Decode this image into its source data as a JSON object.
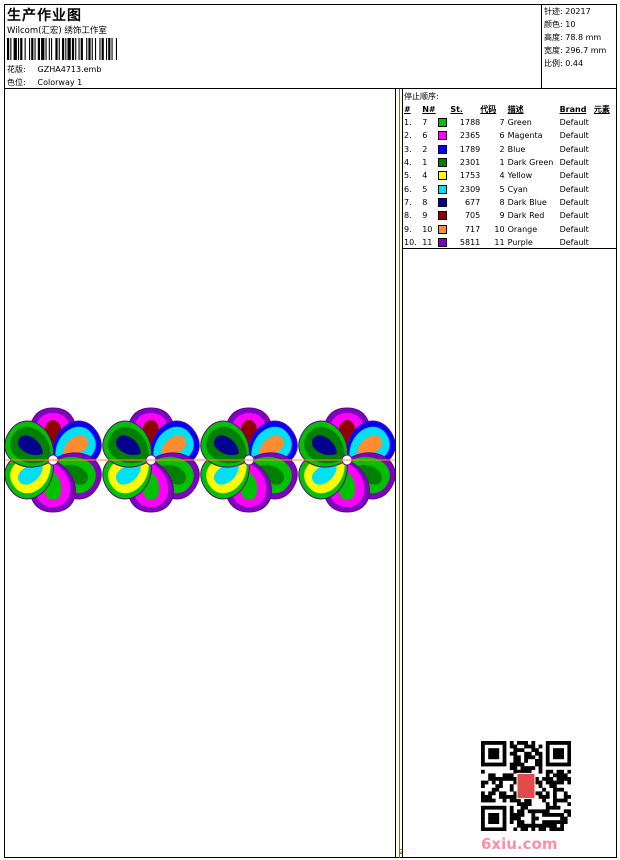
{
  "header": {
    "title": "生产作业图",
    "company": "Wilcom(汇宏) 绣饰工作室",
    "design": {
      "label": "花版:",
      "value": "GZHA4713.emb"
    },
    "colorway": {
      "label": "色位:",
      "value": "Colorway 1"
    }
  },
  "stats": [
    {
      "label": "针迹:",
      "value": "20217"
    },
    {
      "label": "颜色:",
      "value": "10"
    },
    {
      "label": "高度:",
      "value": "78.8 mm"
    },
    {
      "label": "宽度:",
      "value": "296.7 mm"
    },
    {
      "label": "比例:",
      "value": "0.44"
    }
  ],
  "stops": {
    "title": "停止顺序:",
    "headers": [
      "#",
      "N#",
      "St.",
      "代码",
      "描述",
      "Brand",
      "元素"
    ],
    "rows": [
      {
        "idx": "1.",
        "n": "7",
        "color": "#00c000",
        "st": "1788",
        "code": "7",
        "desc": "Green",
        "brand": "Default"
      },
      {
        "idx": "2.",
        "n": "6",
        "color": "#ff00ff",
        "st": "2365",
        "code": "6",
        "desc": "Magenta",
        "brand": "Default"
      },
      {
        "idx": "3.",
        "n": "2",
        "color": "#0000ff",
        "st": "1789",
        "code": "2",
        "desc": "Blue",
        "brand": "Default"
      },
      {
        "idx": "4.",
        "n": "1",
        "color": "#008000",
        "st": "2301",
        "code": "1",
        "desc": "Dark Green",
        "brand": "Default"
      },
      {
        "idx": "5.",
        "n": "4",
        "color": "#ffff00",
        "st": "1753",
        "code": "4",
        "desc": "Yellow",
        "brand": "Default"
      },
      {
        "idx": "6.",
        "n": "5",
        "color": "#00e0f0",
        "st": "2309",
        "code": "5",
        "desc": "Cyan",
        "brand": "Default"
      },
      {
        "idx": "7.",
        "n": "8",
        "color": "#000090",
        "st": "677",
        "code": "8",
        "desc": "Dark Blue",
        "brand": "Default"
      },
      {
        "idx": "8.",
        "n": "9",
        "color": "#900000",
        "st": "705",
        "code": "9",
        "desc": "Dark Red",
        "brand": "Default"
      },
      {
        "idx": "9.",
        "n": "10",
        "color": "#ff8c30",
        "st": "717",
        "code": "10",
        "desc": "Orange",
        "brand": "Default"
      },
      {
        "idx": "10.",
        "n": "11",
        "color": "#8000c0",
        "st": "5811",
        "code": "11",
        "desc": "Purple",
        "brand": "Default"
      }
    ]
  },
  "preview": {
    "flower_count": 4
  },
  "footer": {
    "corner_mark": "2",
    "logo": "6xiu.com"
  }
}
